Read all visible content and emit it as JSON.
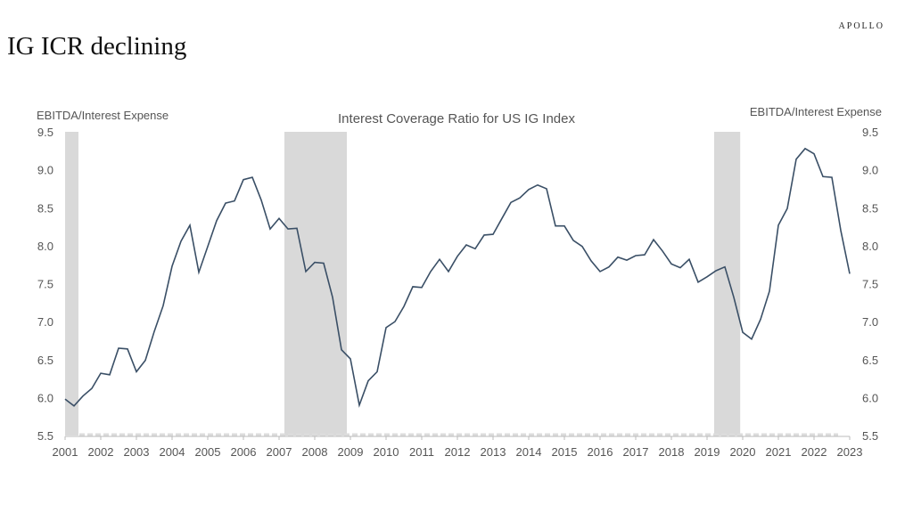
{
  "header": {
    "title": "IG ICR declining",
    "brand": "APOLLO"
  },
  "chart_data": {
    "type": "line",
    "title": "Interest Coverage Ratio for US IG Index",
    "ylabel_left": "EBITDA/Interest Expense",
    "ylabel_right": "EBITDA/Interest Expense",
    "xlim": [
      2001,
      2023
    ],
    "ylim": [
      5.5,
      9.5
    ],
    "x_ticks": [
      "2001",
      "2002",
      "2003",
      "2004",
      "2005",
      "2006",
      "2007",
      "2008",
      "2009",
      "2010",
      "2011",
      "2012",
      "2013",
      "2014",
      "2015",
      "2016",
      "2017",
      "2018",
      "2019",
      "2020",
      "2021",
      "2022",
      "2023"
    ],
    "y_ticks": [
      "5.5",
      "6.0",
      "6.5",
      "7.0",
      "7.5",
      "8.0",
      "8.5",
      "9.0",
      "9.5"
    ],
    "grid": false,
    "frequency": "quarterly",
    "x_start": 2001.0,
    "x_step": 0.25,
    "series_color": "#3a4f66",
    "recession_color": "#d9d9d9",
    "recession_bands": [
      [
        2001.0,
        2001.375
      ],
      [
        2007.15,
        2008.9
      ],
      [
        2019.2,
        2019.93
      ]
    ],
    "values": [
      5.98,
      5.89,
      6.02,
      6.12,
      6.32,
      6.3,
      6.65,
      6.64,
      6.34,
      6.49,
      6.87,
      7.21,
      7.73,
      8.06,
      8.27,
      7.65,
      7.99,
      8.33,
      8.56,
      8.59,
      8.87,
      8.9,
      8.6,
      8.22,
      8.36,
      8.22,
      8.23,
      7.66,
      7.78,
      7.77,
      7.32,
      6.63,
      6.51,
      5.9,
      6.22,
      6.34,
      6.92,
      7.0,
      7.2,
      7.46,
      7.45,
      7.66,
      7.82,
      7.66,
      7.86,
      8.01,
      7.96,
      8.14,
      8.15,
      8.36,
      8.57,
      8.63,
      8.74,
      8.8,
      8.75,
      8.26,
      8.26,
      8.07,
      7.99,
      7.8,
      7.66,
      7.72,
      7.85,
      7.81,
      7.87,
      7.88,
      8.08,
      7.93,
      7.76,
      7.71,
      7.82,
      7.52,
      7.59,
      7.67,
      7.72,
      7.32,
      6.86,
      6.77,
      7.03,
      7.4,
      8.27,
      8.49,
      9.14,
      9.28,
      9.21,
      8.91,
      8.9,
      8.2,
      7.63
    ]
  }
}
